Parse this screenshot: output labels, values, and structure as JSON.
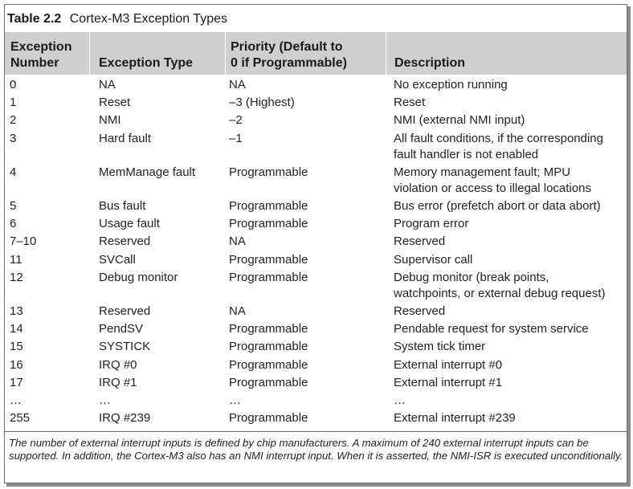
{
  "table": {
    "number": "Table 2.2",
    "title": "Cortex-M3 Exception Types",
    "headers": {
      "exception_number": [
        "Exception",
        "Number"
      ],
      "exception_type": [
        "Exception Type"
      ],
      "priority": [
        "Priority (Default to",
        "0 if Programmable)"
      ],
      "description": [
        "Description"
      ]
    },
    "rows": [
      {
        "number": "0",
        "type": "NA",
        "priority": "NA",
        "description": [
          "No exception running"
        ]
      },
      {
        "number": "1",
        "type": "Reset",
        "priority": "–3 (Highest)",
        "description": [
          "Reset"
        ]
      },
      {
        "number": "2",
        "type": "NMI",
        "priority": "–2",
        "description": [
          "NMI (external NMI input)"
        ]
      },
      {
        "number": "3",
        "type": "Hard fault",
        "priority": "–1",
        "description": [
          "All fault conditions, if the corresponding",
          "fault handler is not enabled"
        ]
      },
      {
        "number": "4",
        "type": "MemManage fault",
        "priority": "Programmable",
        "description": [
          "Memory management fault; MPU",
          "violation or access to illegal locations"
        ]
      },
      {
        "number": "5",
        "type": "Bus fault",
        "priority": "Programmable",
        "description": [
          "Bus error (prefetch abort or data abort)"
        ]
      },
      {
        "number": "6",
        "type": "Usage fault",
        "priority": "Programmable",
        "description": [
          "Program error"
        ]
      },
      {
        "number": "7–10",
        "type": "Reserved",
        "priority": "NA",
        "description": [
          "Reserved"
        ]
      },
      {
        "number": "11",
        "type": "SVCall",
        "priority": "Programmable",
        "description": [
          "Supervisor call"
        ]
      },
      {
        "number": "12",
        "type": "Debug monitor",
        "priority": "Programmable",
        "description": [
          "Debug monitor (break points,",
          "watchpoints, or external debug request)"
        ]
      },
      {
        "number": "13",
        "type": "Reserved",
        "priority": "NA",
        "description": [
          "Reserved"
        ]
      },
      {
        "number": "14",
        "type": "PendSV",
        "priority": "Programmable",
        "description": [
          "Pendable request for system service"
        ]
      },
      {
        "number": "15",
        "type": "SYSTICK",
        "priority": "Programmable",
        "description": [
          "System tick timer"
        ]
      },
      {
        "number": "16",
        "type": "IRQ #0",
        "priority": "Programmable",
        "description": [
          "External interrupt #0"
        ]
      },
      {
        "number": "17",
        "type": "IRQ #1",
        "priority": "Programmable",
        "description": [
          "External interrupt #1"
        ]
      },
      {
        "number": "…",
        "type": "…",
        "priority": "…",
        "description": [
          "…"
        ]
      },
      {
        "number": "255",
        "type": "IRQ #239",
        "priority": "Programmable",
        "description": [
          "External interrupt #239"
        ]
      }
    ],
    "footnote": "The number of external interrupt inputs is defined by chip manufacturers. A maximum of 240 external interrupt inputs can be supported. In addition, the Cortex-M3 also has an NMI interrupt input. When it is asserted, the NMI-ISR is executed unconditionally.",
    "colors": {
      "header_bg": "#cfcfcf",
      "border": "#6d6d6d",
      "shadow": "#8a8a8a"
    }
  }
}
